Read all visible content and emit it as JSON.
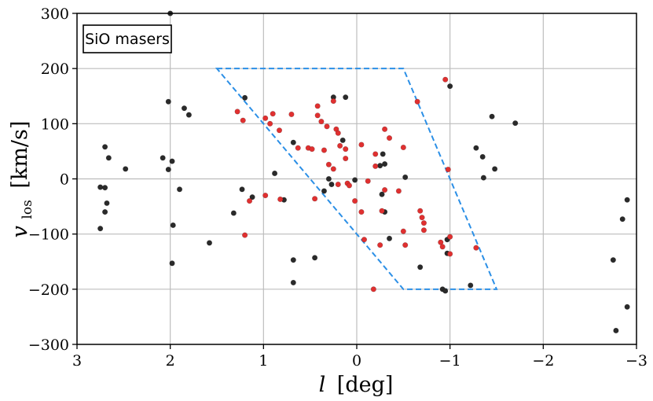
{
  "chart_data": {
    "type": "scatter",
    "title": "",
    "annotation": "SiO masers",
    "xlabel_var": "l",
    "xlabel_unit": "[deg]",
    "ylabel_var": "v",
    "ylabel_sub": "los",
    "ylabel_unit": "[km/s]",
    "xlim": [
      3,
      -3
    ],
    "ylim": [
      -300,
      300
    ],
    "xticks": [
      3,
      2,
      1,
      0,
      -1,
      -2,
      -3
    ],
    "xtick_labels": [
      "3",
      "2",
      "1",
      "0",
      "−1",
      "−2",
      "−3"
    ],
    "yticks": [
      -300,
      -200,
      -100,
      0,
      100,
      200,
      300
    ],
    "ytick_labels": [
      "−300",
      "−200",
      "−100",
      "0",
      "100",
      "200",
      "300"
    ],
    "grid": true,
    "region_polygon": {
      "style": "dashed",
      "color": "#2b8fe6",
      "vertices": [
        [
          1.5,
          200
        ],
        [
          -0.5,
          200
        ],
        [
          -1.5,
          -200
        ],
        [
          -0.5,
          -200
        ]
      ]
    },
    "series": [
      {
        "color": "#2a2a2a",
        "points": [
          [
            2.0,
            300
          ],
          [
            1.2,
            147
          ],
          [
            2.02,
            140
          ],
          [
            1.85,
            128
          ],
          [
            1.8,
            116
          ],
          [
            2.7,
            58
          ],
          [
            2.66,
            38
          ],
          [
            2.48,
            18
          ],
          [
            2.08,
            38
          ],
          [
            1.98,
            32
          ],
          [
            2.02,
            17
          ],
          [
            2.75,
            -15
          ],
          [
            2.7,
            -16
          ],
          [
            1.9,
            -19
          ],
          [
            2.68,
            -44
          ],
          [
            2.7,
            -60
          ],
          [
            2.75,
            -90
          ],
          [
            1.97,
            -84
          ],
          [
            1.98,
            -153
          ],
          [
            1.58,
            -116
          ],
          [
            1.32,
            -62
          ],
          [
            1.23,
            -19
          ],
          [
            1.12,
            -33
          ],
          [
            0.88,
            10
          ],
          [
            0.78,
            -38
          ],
          [
            0.68,
            66
          ],
          [
            0.68,
            -147
          ],
          [
            0.68,
            -188
          ],
          [
            0.45,
            -143
          ],
          [
            0.35,
            -22
          ],
          [
            0.3,
            0
          ],
          [
            0.27,
            -10
          ],
          [
            0.25,
            148
          ],
          [
            0.12,
            148
          ],
          [
            0.15,
            70
          ],
          [
            0.02,
            -2
          ],
          [
            -0.25,
            24
          ],
          [
            -0.27,
            -28
          ],
          [
            -0.28,
            45
          ],
          [
            -0.3,
            27
          ],
          [
            -0.3,
            -60
          ],
          [
            -0.35,
            -108
          ],
          [
            -0.52,
            3
          ],
          [
            -0.68,
            -160
          ],
          [
            -0.92,
            -200
          ],
          [
            -0.95,
            -203
          ],
          [
            -0.97,
            -110
          ],
          [
            -0.97,
            -135
          ],
          [
            -1.0,
            168
          ],
          [
            -1.22,
            -193
          ],
          [
            -1.28,
            56
          ],
          [
            -1.35,
            40
          ],
          [
            -1.36,
            2
          ],
          [
            -1.45,
            113
          ],
          [
            -1.48,
            18
          ],
          [
            -1.7,
            101
          ],
          [
            -2.75,
            -147
          ],
          [
            -2.85,
            -73
          ],
          [
            -2.9,
            -38
          ],
          [
            -2.9,
            -232
          ],
          [
            -2.78,
            -275
          ]
        ]
      },
      {
        "color": "#e03030",
        "points": [
          [
            1.28,
            122
          ],
          [
            1.22,
            106
          ],
          [
            1.2,
            -102
          ],
          [
            1.15,
            -40
          ],
          [
            0.98,
            110
          ],
          [
            0.93,
            100
          ],
          [
            0.9,
            118
          ],
          [
            0.83,
            88
          ],
          [
            0.82,
            -37
          ],
          [
            0.98,
            -30
          ],
          [
            0.7,
            117
          ],
          [
            0.63,
            56
          ],
          [
            0.52,
            56
          ],
          [
            0.48,
            54
          ],
          [
            0.45,
            -36
          ],
          [
            0.42,
            132
          ],
          [
            0.42,
            115
          ],
          [
            0.38,
            104
          ],
          [
            0.35,
            52
          ],
          [
            0.32,
            95
          ],
          [
            0.3,
            26
          ],
          [
            0.25,
            141
          ],
          [
            0.25,
            18
          ],
          [
            0.22,
            90
          ],
          [
            0.2,
            83
          ],
          [
            0.18,
            60
          ],
          [
            0.12,
            54
          ],
          [
            0.12,
            37
          ],
          [
            0.1,
            -8
          ],
          [
            0.08,
            -12
          ],
          [
            0.02,
            -40
          ],
          [
            -0.05,
            62
          ],
          [
            -0.05,
            -60
          ],
          [
            -0.08,
            -110
          ],
          [
            -0.12,
            -4
          ],
          [
            -0.2,
            23
          ],
          [
            -0.2,
            45
          ],
          [
            -0.25,
            -120
          ],
          [
            -0.27,
            -58
          ],
          [
            -0.3,
            90
          ],
          [
            -0.35,
            74
          ],
          [
            -0.45,
            -22
          ],
          [
            -0.5,
            -95
          ],
          [
            -0.5,
            57
          ],
          [
            -0.52,
            -120
          ],
          [
            -0.65,
            140
          ],
          [
            -0.68,
            -58
          ],
          [
            -0.7,
            -70
          ],
          [
            -0.72,
            -80
          ],
          [
            -0.72,
            -93
          ],
          [
            -0.9,
            -115
          ],
          [
            -0.92,
            -123
          ],
          [
            -0.95,
            180
          ],
          [
            -0.98,
            17
          ],
          [
            -1.0,
            -105
          ],
          [
            -1.0,
            -136
          ],
          [
            -1.28,
            -125
          ],
          [
            -0.18,
            -200
          ],
          [
            -0.3,
            -20
          ],
          [
            0.2,
            -10
          ]
        ]
      }
    ]
  }
}
